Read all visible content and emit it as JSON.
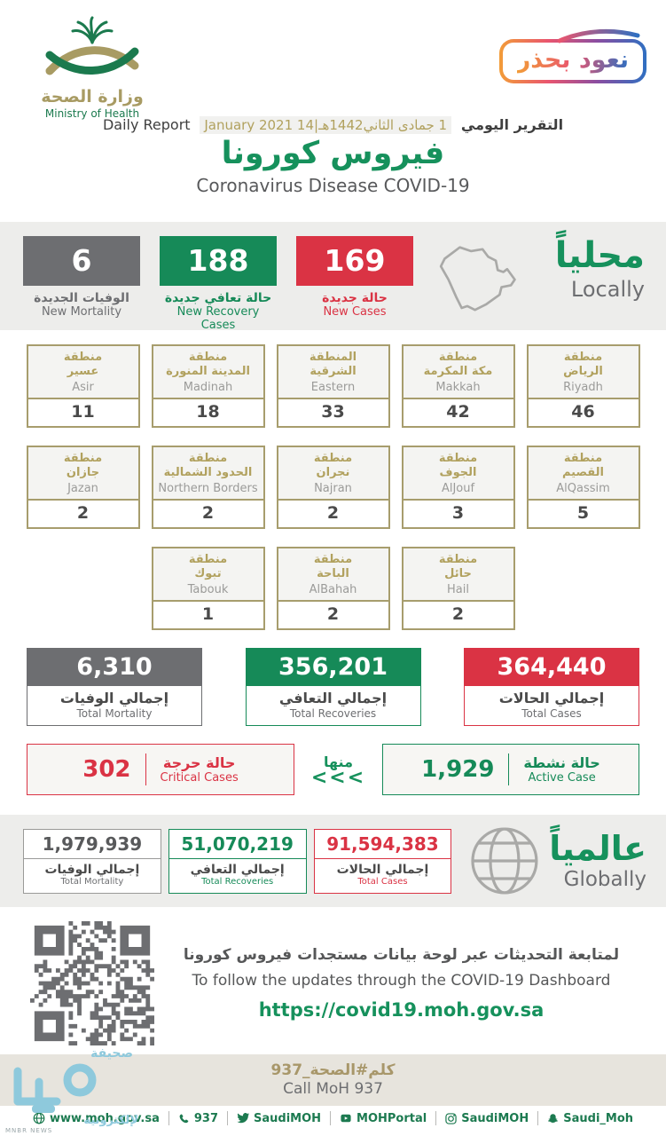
{
  "header": {
    "logo": {
      "title_ar": "وزارة الصحة",
      "title_en": "Ministry of Health"
    },
    "badge_text": "نعود بحذر",
    "report_label_ar": "التقرير اليومي",
    "date_value": "1 جمادى الثاني1442هـ|14 January 2021",
    "report_label_en": "Daily Report"
  },
  "title": {
    "ar": "فيروس كورونا",
    "en": "Coronavirus Disease COVID-19"
  },
  "locally": {
    "heading_ar": "محلياً",
    "heading_en": "Locally",
    "stats": [
      {
        "value": "6",
        "label_ar": "الوفيات الجديدة",
        "label_en": "New Mortality",
        "color": "#6d6e71"
      },
      {
        "value": "188",
        "label_ar": "حالة تعافي جديدة",
        "label_en": "New Recovery Cases",
        "color": "#168a58"
      },
      {
        "value": "169",
        "label_ar": "حالة جديدة",
        "label_en": "New Cases",
        "color": "#da3344"
      }
    ]
  },
  "regions": {
    "row1": [
      {
        "ar1": "منطقة",
        "ar2": "عسير",
        "en": "Asir",
        "value": "11"
      },
      {
        "ar1": "منطقة",
        "ar2": "المدينة المنورة",
        "en": "Madinah",
        "value": "18"
      },
      {
        "ar1": "المنطقة",
        "ar2": "الشرقية",
        "en": "Eastern",
        "value": "33"
      },
      {
        "ar1": "منطقة",
        "ar2": "مكة المكرمة",
        "en": "Makkah",
        "value": "42"
      },
      {
        "ar1": "منطقة",
        "ar2": "الرياض",
        "en": "Riyadh",
        "value": "46"
      }
    ],
    "row2": [
      {
        "ar1": "منطقة",
        "ar2": "جازان",
        "en": "Jazan",
        "value": "2"
      },
      {
        "ar1": "منطقة",
        "ar2": "الحدود الشمالية",
        "en": "Northern Borders",
        "value": "2"
      },
      {
        "ar1": "منطقة",
        "ar2": "نجران",
        "en": "Najran",
        "value": "2"
      },
      {
        "ar1": "منطقة",
        "ar2": "الجوف",
        "en": "AlJouf",
        "value": "3"
      },
      {
        "ar1": "منطقة",
        "ar2": "القصيم",
        "en": "AlQassim",
        "value": "5"
      }
    ],
    "row3": [
      {
        "ar1": "منطقة",
        "ar2": "تبوك",
        "en": "Tabouk",
        "value": "1"
      },
      {
        "ar1": "منطقة",
        "ar2": "الباحة",
        "en": "AlBahah",
        "value": "2"
      },
      {
        "ar1": "منطقة",
        "ar2": "حائل",
        "en": "Hail",
        "value": "2"
      }
    ]
  },
  "totals": [
    {
      "value": "6,310",
      "label_ar": "إجمالي الوفيات",
      "label_en": "Total Mortality"
    },
    {
      "value": "356,201",
      "label_ar": "إجمالي التعافي",
      "label_en": "Total Recoveries"
    },
    {
      "value": "364,440",
      "label_ar": "إجمالي الحالات",
      "label_en": "Total Cases"
    }
  ],
  "critical_active": {
    "critical": {
      "value": "302",
      "label_ar": "حالة حرجة",
      "label_en": "Critical Cases"
    },
    "of_which": "منها",
    "arrows": "<<<",
    "active": {
      "value": "1,929",
      "label_ar": "حالة نشطة",
      "label_en": "Active Case"
    }
  },
  "globally": {
    "heading_ar": "عالمياً",
    "heading_en": "Globally",
    "stats": [
      {
        "value": "1,979,939",
        "label_ar": "إجمالي الوفيات",
        "label_en": "Total Mortality"
      },
      {
        "value": "51,070,219",
        "label_ar": "إجمالي التعافي",
        "label_en": "Total Recoveries"
      },
      {
        "value": "91,594,383",
        "label_ar": "إجمالي الحالات",
        "label_en": "Total Cases"
      }
    ]
  },
  "dashboard": {
    "line_ar": "لمتابعة التحديثات عبر لوحة بيانات مستجدات فيروس كورونا",
    "line_en": "To follow the updates through the COVID-19 Dashboard",
    "url": "https://covid19.moh.gov.sa"
  },
  "call": {
    "ar": "كلم#الصحة_937",
    "en": "Call MoH 937"
  },
  "footer": {
    "items": [
      {
        "icon": "globe-icon",
        "text": "www.moh.gov.sa"
      },
      {
        "icon": "phone-icon",
        "text": "937"
      },
      {
        "icon": "twitter-icon",
        "text": "SaudiMOH"
      },
      {
        "icon": "youtube-icon",
        "text": "MOHPortal"
      },
      {
        "icon": "instagram-icon",
        "text": "SaudiMOH"
      },
      {
        "icon": "snapchat-icon",
        "text": "Saudi_Moh"
      }
    ]
  },
  "watermark": {
    "top": "صحيفة",
    "bottom": "لإلكترونية",
    "tiny": "MNBR NEWS"
  },
  "colors": {
    "green": "#168a58",
    "red": "#da3344",
    "gray": "#6d6e71",
    "tan": "#a79d6d",
    "band": "#ededeb"
  }
}
